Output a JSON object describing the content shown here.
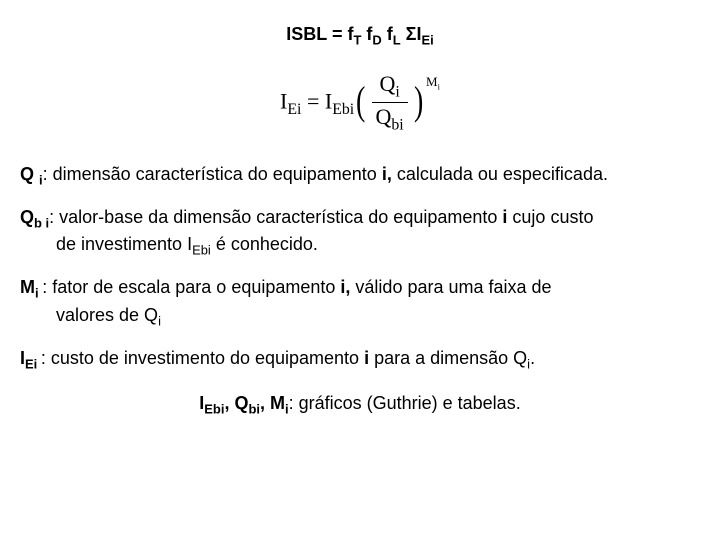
{
  "title": {
    "label": "ISBL = f",
    "t": "T",
    "fd": " f",
    "d": "D",
    "fl": " f",
    "l": "L",
    "sigma": " Σ",
    "ie": "I",
    "ei": "Ei"
  },
  "eq": {
    "lhs_I": "I",
    "lhs_Ei": "Ei",
    "equals": " = ",
    "rhs_I": "I",
    "rhs_Ebi": "Ebi",
    "Q_top": "Q",
    "i_top": "i",
    "Q_bot": "Q",
    "bi_bot": "bi",
    "M": "M",
    "Mi": "i"
  },
  "defs": {
    "q": {
      "term1": "Q ",
      "sub1": "i",
      "txt": ": dimensão característica do equipamento ",
      "bold_i": "i,",
      "rest": " calculada ou especificada."
    },
    "qb": {
      "term1": "Q",
      "sub1": "b i",
      "txt": ": valor-base da dimensão característica do equipamento ",
      "bold_i": "i",
      "rest1": " cujo custo",
      "line2a": "de investimento I",
      "line2sub": "Ebi",
      "line2b": " é conhecido."
    },
    "m": {
      "term1": "M",
      "sub1": "i ",
      "txt": ": fator de escala para o equipamento ",
      "bold_i": "i,",
      "rest1": " válido para uma faixa de",
      "line2a": "valores de Q",
      "line2sub": "i"
    },
    "ie": {
      "term1": "I",
      "sub1": "Ei ",
      "txt": ": custo de investimento do equipamento ",
      "bold_i": "i",
      "rest1": " para a dimensão Q",
      "restsub": "i",
      "dot": "."
    }
  },
  "footer": {
    "t1": "I",
    "s1": "Ebi",
    "c1": ", Q",
    "s2": "bi",
    "c2": ", M",
    "s3": "i",
    "rest": ": gráficos (Guthrie) e tabelas."
  }
}
